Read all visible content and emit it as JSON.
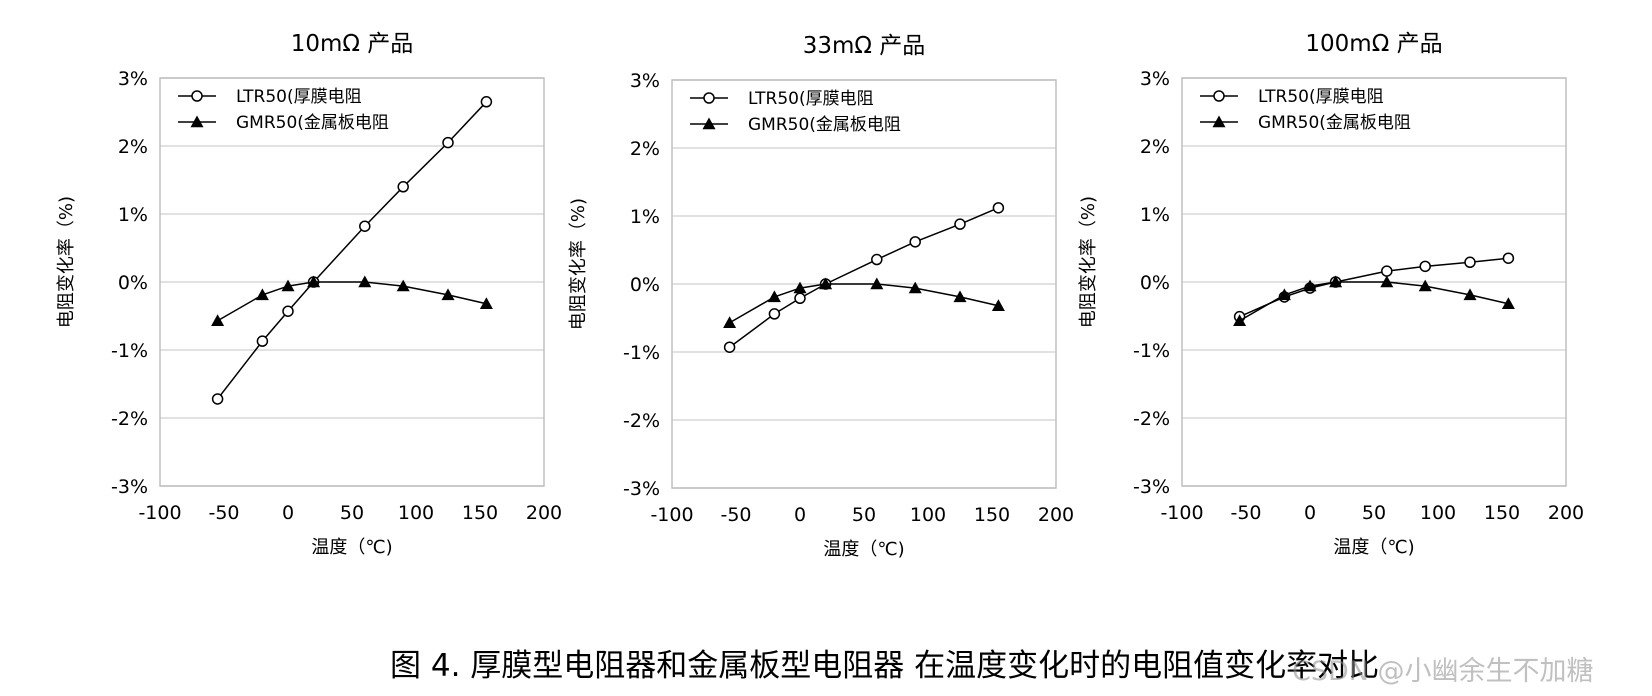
{
  "figure_caption": "图 4. 厚膜型电阻器和金属板型电阻器 在温度变化时的电阻值变化率对比",
  "watermark": "CSDN @小幽余生不加糖",
  "colors": {
    "line": "#000000",
    "grid": "#d9d9d9",
    "axis": "#bfbfbf"
  },
  "chart_data": [
    {
      "type": "line",
      "title": "10mΩ 产品",
      "xlabel": "温度（℃)",
      "ylabel": "电阻变化率（%)",
      "xlim": [
        -100,
        200
      ],
      "ylim": [
        -3,
        3
      ],
      "x_ticks": [
        "-100",
        "-50",
        "0",
        "50",
        "100",
        "150",
        "200"
      ],
      "y_ticks": [
        "3%",
        "2%",
        "1%",
        "0%",
        "-1%",
        "-2%",
        "-3%"
      ],
      "grid": "horizontal",
      "legend": "top-left",
      "series": [
        {
          "name": "LTR50(厚膜电阻",
          "marker": "circle-open",
          "x": [
            -55,
            -20,
            0,
            20,
            60,
            90,
            125,
            155
          ],
          "y": [
            -1.72,
            -0.87,
            -0.43,
            0.0,
            0.82,
            1.4,
            2.05,
            2.65
          ]
        },
        {
          "name": "GMR50(金属板电阻",
          "marker": "triangle-filled",
          "x": [
            -55,
            -20,
            0,
            20,
            60,
            90,
            125,
            155
          ],
          "y": [
            -0.57,
            -0.19,
            -0.06,
            0.0,
            0.0,
            -0.06,
            -0.19,
            -0.32
          ]
        }
      ]
    },
    {
      "type": "line",
      "title": "33mΩ 产品",
      "xlabel": "温度（℃)",
      "ylabel": "电阻变化率（%)",
      "xlim": [
        -100,
        200
      ],
      "ylim": [
        -3,
        3
      ],
      "x_ticks": [
        "-100",
        "-50",
        "0",
        "50",
        "100",
        "150",
        "200"
      ],
      "y_ticks": [
        "3%",
        "2%",
        "1%",
        "0%",
        "-1%",
        "-2%",
        "-3%"
      ],
      "grid": "horizontal",
      "legend": "top-left",
      "series": [
        {
          "name": "LTR50(厚膜电阻",
          "marker": "circle-open",
          "x": [
            -55,
            -20,
            0,
            20,
            60,
            90,
            125,
            155
          ],
          "y": [
            -0.93,
            -0.44,
            -0.21,
            0.0,
            0.36,
            0.62,
            0.88,
            1.12
          ]
        },
        {
          "name": "GMR50(金属板电阻",
          "marker": "triangle-filled",
          "x": [
            -55,
            -20,
            0,
            20,
            60,
            90,
            125,
            155
          ],
          "y": [
            -0.57,
            -0.19,
            -0.06,
            0.0,
            0.0,
            -0.06,
            -0.19,
            -0.32
          ]
        }
      ]
    },
    {
      "type": "line",
      "title": "100mΩ 产品",
      "xlabel": "温度（℃)",
      "ylabel": "电阻变化率（%)",
      "xlim": [
        -100,
        200
      ],
      "ylim": [
        -3,
        3
      ],
      "x_ticks": [
        "-100",
        "-50",
        "0",
        "50",
        "100",
        "150",
        "200"
      ],
      "y_ticks": [
        "3%",
        "2%",
        "1%",
        "0%",
        "-1%",
        "-2%",
        "-3%"
      ],
      "grid": "horizontal",
      "legend": "top-left",
      "series": [
        {
          "name": "LTR50(厚膜电阻",
          "marker": "circle-open",
          "x": [
            -55,
            -20,
            0,
            20,
            60,
            90,
            125,
            155
          ],
          "y": [
            -0.51,
            -0.22,
            -0.09,
            0.0,
            0.16,
            0.23,
            0.29,
            0.35
          ]
        },
        {
          "name": "GMR50(金属板电阻",
          "marker": "triangle-filled",
          "x": [
            -55,
            -20,
            0,
            20,
            60,
            90,
            125,
            155
          ],
          "y": [
            -0.57,
            -0.19,
            -0.06,
            0.0,
            0.0,
            -0.06,
            -0.19,
            -0.32
          ]
        }
      ]
    }
  ]
}
